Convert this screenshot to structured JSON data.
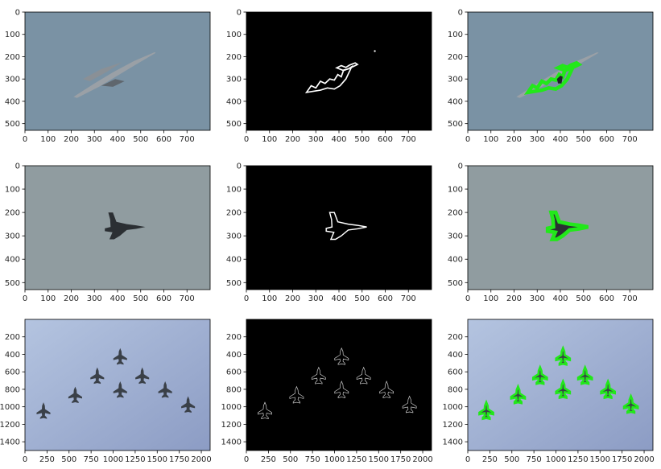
{
  "figure": {
    "layout": "3 rows x 3 columns of image panels",
    "columns": [
      "original",
      "edges",
      "contour-overlay"
    ]
  },
  "colors": {
    "edge_background": "#000000",
    "edge_line": "#ffffff",
    "contour": "#22e81a",
    "sky_row1": "#7a92a4",
    "sky_row2": "#909ca0",
    "sky_row3": "#a9b8d6",
    "aircraft": "#2b2f33"
  },
  "chart_data": [
    {
      "type": "heatmap",
      "panel": "row1-original",
      "ylim": [
        530,
        0
      ],
      "xlim": [
        0,
        800
      ],
      "xticks": [
        0,
        100,
        200,
        300,
        400,
        500,
        600,
        700
      ],
      "yticks": [
        0,
        100,
        200,
        300,
        400,
        500
      ],
      "subject": "transport aircraft banking",
      "icon": "transport-plane-icon"
    },
    {
      "type": "heatmap",
      "panel": "row1-edges",
      "ylim": [
        530,
        0
      ],
      "xlim": [
        0,
        800
      ],
      "xticks": [
        0,
        100,
        200,
        300,
        400,
        500,
        600,
        700
      ],
      "yticks": [
        0,
        100,
        200,
        300,
        400,
        500
      ],
      "subject": "edge map of transport aircraft",
      "icon": "edge-outline-icon"
    },
    {
      "type": "heatmap",
      "panel": "row1-overlay",
      "ylim": [
        530,
        0
      ],
      "xlim": [
        0,
        800
      ],
      "xticks": [
        0,
        100,
        200,
        300,
        400,
        500,
        600,
        700
      ],
      "yticks": [
        0,
        100,
        200,
        300,
        400,
        500
      ],
      "subject": "contours drawn on transport aircraft",
      "icon": "contour-overlay-icon"
    },
    {
      "type": "heatmap",
      "panel": "row2-original",
      "ylim": [
        530,
        0
      ],
      "xlim": [
        0,
        800
      ],
      "xticks": [
        0,
        100,
        200,
        300,
        400,
        500,
        600,
        700
      ],
      "yticks": [
        0,
        100,
        200,
        300,
        400,
        500
      ],
      "subject": "delta-wing fighter jet",
      "icon": "fighter-jet-icon"
    },
    {
      "type": "heatmap",
      "panel": "row2-edges",
      "ylim": [
        530,
        0
      ],
      "xlim": [
        0,
        800
      ],
      "xticks": [
        0,
        100,
        200,
        300,
        400,
        500,
        600,
        700
      ],
      "yticks": [
        0,
        100,
        200,
        300,
        400,
        500
      ],
      "subject": "edge map of fighter jet",
      "icon": "edge-outline-icon"
    },
    {
      "type": "heatmap",
      "panel": "row2-overlay",
      "ylim": [
        530,
        0
      ],
      "xlim": [
        0,
        800
      ],
      "xticks": [
        0,
        100,
        200,
        300,
        400,
        500,
        600,
        700
      ],
      "yticks": [
        0,
        100,
        200,
        300,
        400,
        500
      ],
      "subject": "contour drawn on fighter jet",
      "icon": "contour-overlay-icon"
    },
    {
      "type": "heatmap",
      "panel": "row3-original",
      "ylim": [
        1500,
        0
      ],
      "xlim": [
        0,
        2100
      ],
      "xticks": [
        0,
        250,
        500,
        750,
        1000,
        1250,
        1500,
        1750,
        2000
      ],
      "yticks": [
        200,
        400,
        600,
        800,
        1000,
        1200,
        1400
      ],
      "subject": "formation of eight jets",
      "icon": "jet-formation-icon"
    },
    {
      "type": "heatmap",
      "panel": "row3-edges",
      "ylim": [
        1500,
        0
      ],
      "xlim": [
        0,
        2100
      ],
      "xticks": [
        0,
        250,
        500,
        750,
        1000,
        1250,
        1500,
        1750,
        2000
      ],
      "yticks": [
        200,
        400,
        600,
        800,
        1000,
        1200,
        1400
      ],
      "subject": "edge map of jet formation",
      "icon": "edge-outline-icon"
    },
    {
      "type": "heatmap",
      "panel": "row3-overlay",
      "ylim": [
        1500,
        0
      ],
      "xlim": [
        0,
        2100
      ],
      "xticks": [
        0,
        250,
        500,
        750,
        1000,
        1250,
        1500,
        1750,
        2000
      ],
      "yticks": [
        200,
        400,
        600,
        800,
        1000,
        1200,
        1400
      ],
      "subject": "contours drawn on jet formation",
      "icon": "contour-overlay-icon"
    }
  ]
}
